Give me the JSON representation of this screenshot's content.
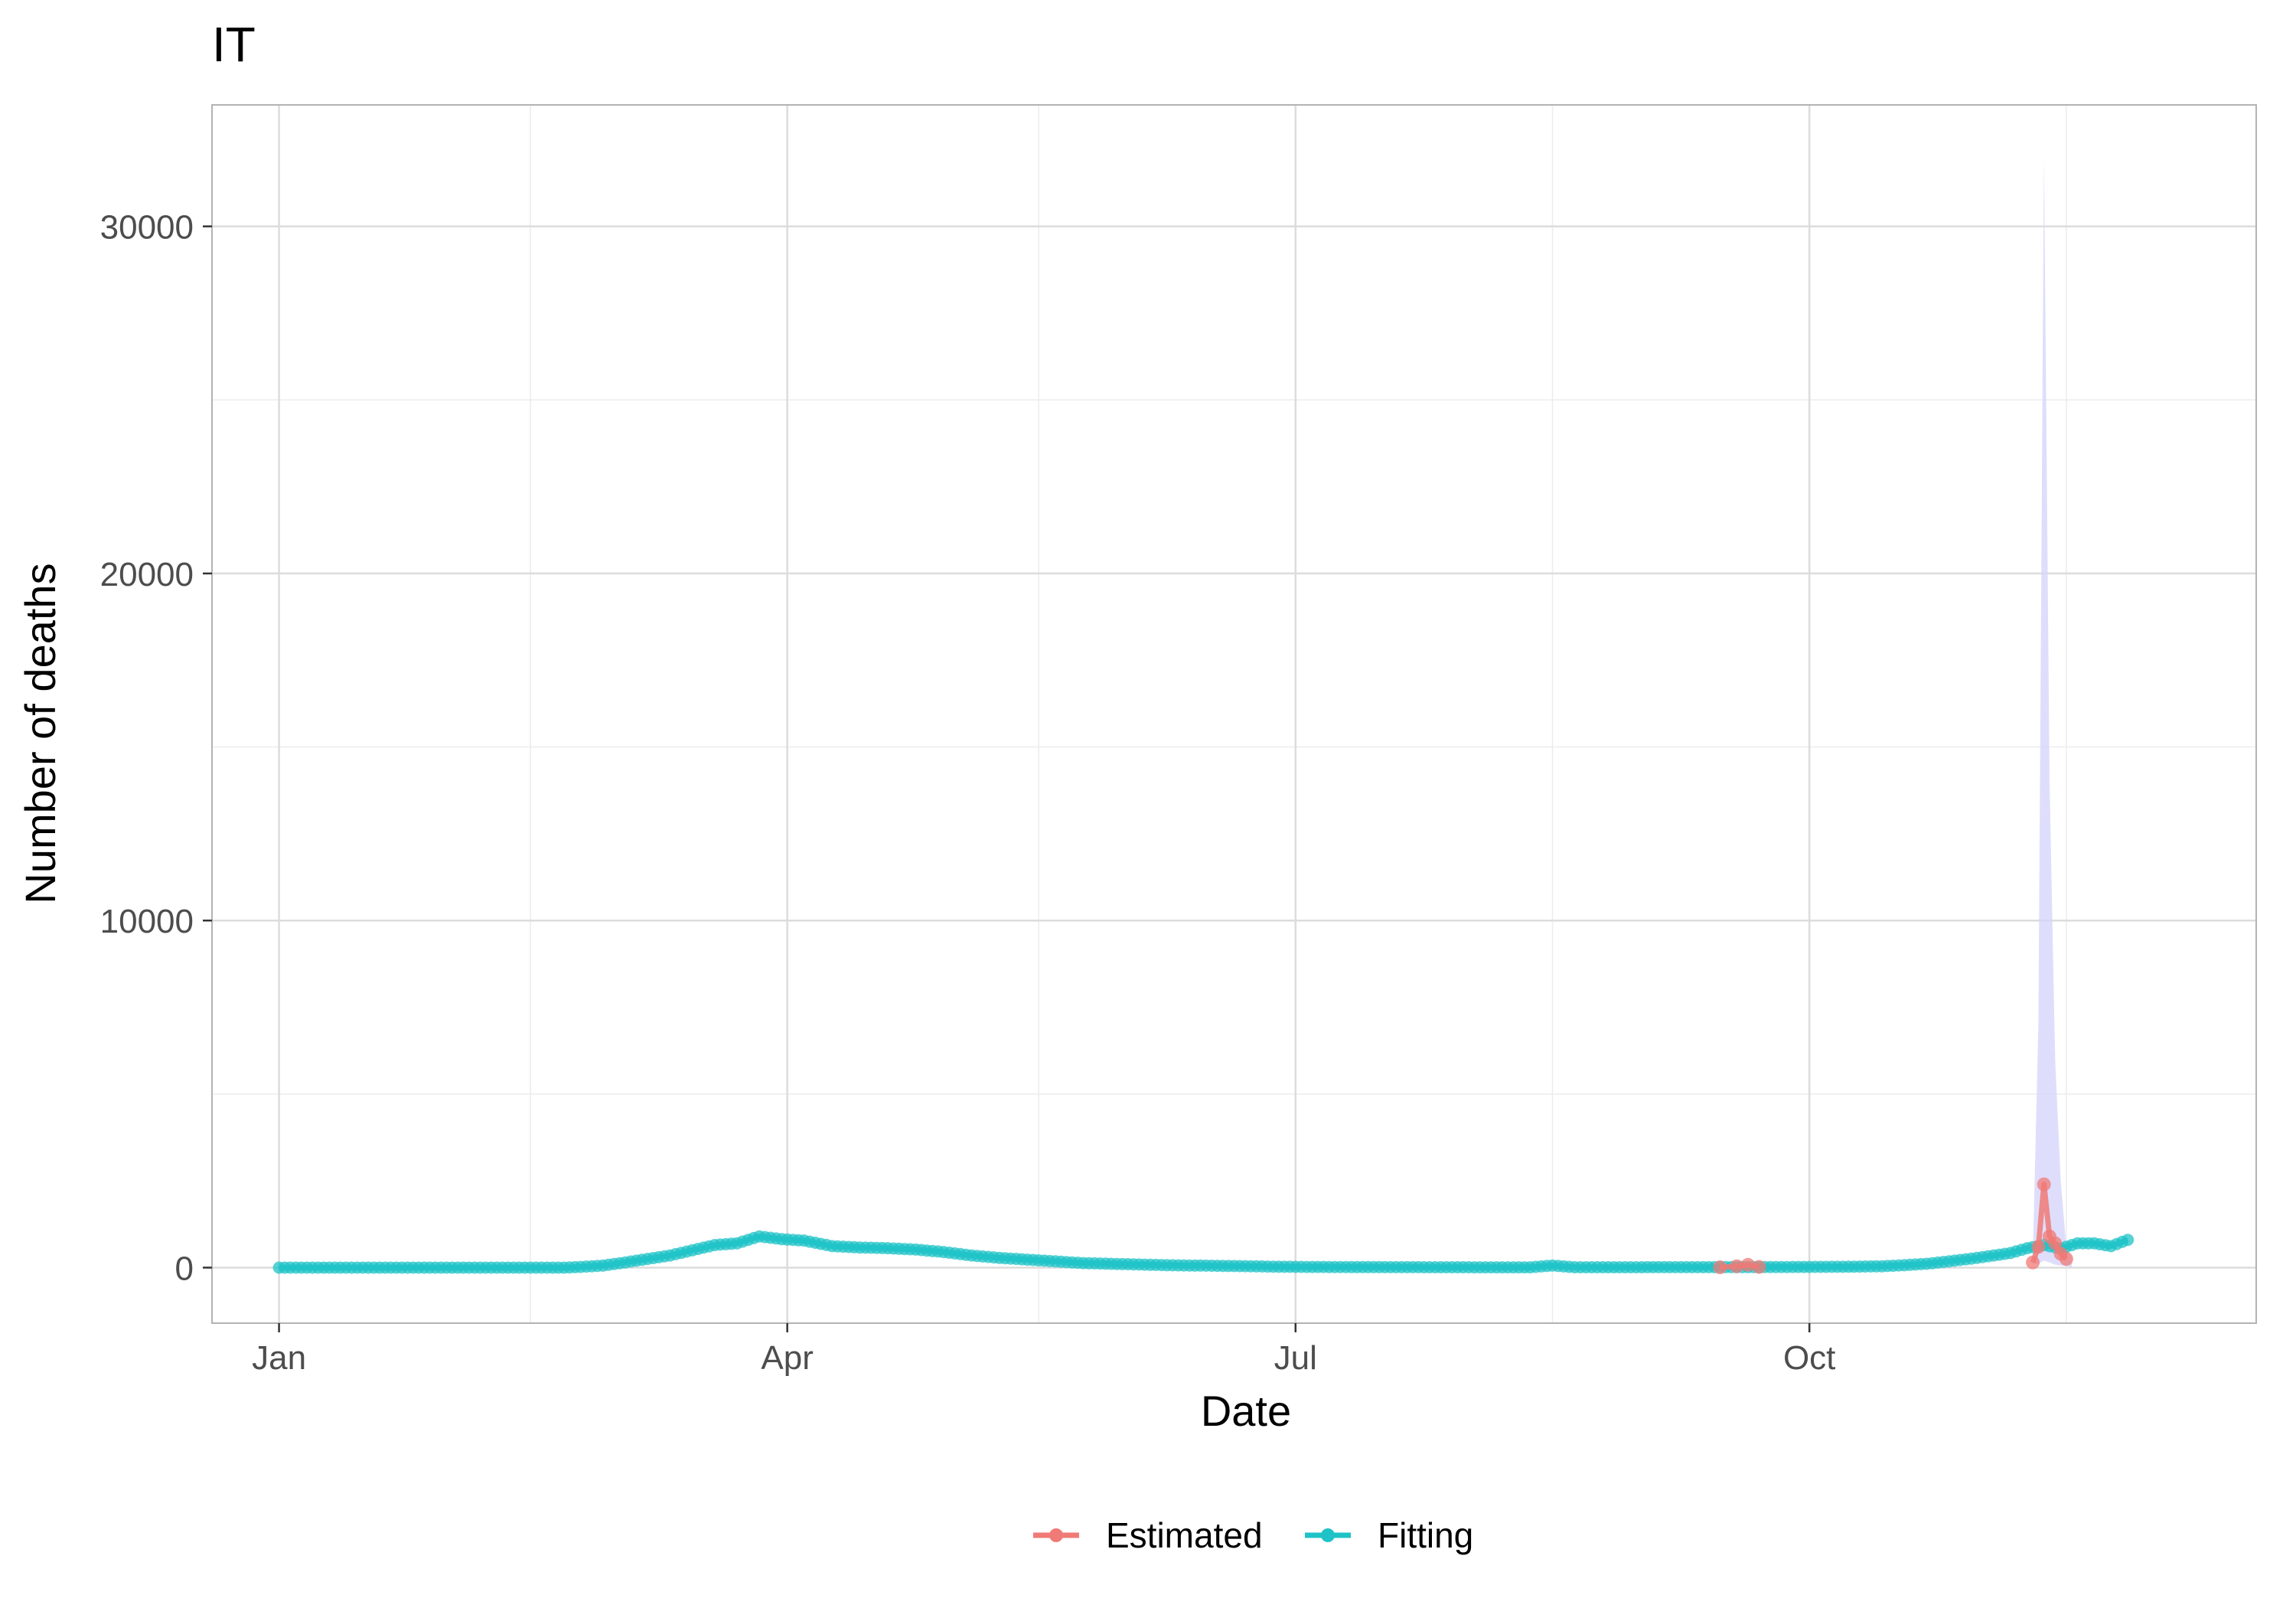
{
  "chart_data": {
    "type": "line",
    "title": "IT",
    "xlabel": "Date",
    "ylabel": "Number of  deaths",
    "x_ticks": [
      {
        "date": "2020-01-01",
        "label": "Jan"
      },
      {
        "date": "2020-04-01",
        "label": "Apr"
      },
      {
        "date": "2020-07-01",
        "label": "Jul"
      },
      {
        "date": "2020-10-01",
        "label": "Oct"
      }
    ],
    "x_minor_ticks": [
      "2020-02-15",
      "2020-05-16",
      "2020-08-16",
      "2020-11-16"
    ],
    "xlim": [
      "2019-12-20",
      "2020-12-20"
    ],
    "y_ticks": [
      0,
      10000,
      20000,
      30000
    ],
    "y_minor_ticks": [
      5000,
      15000,
      25000
    ],
    "ylim": [
      -1600,
      33500
    ],
    "grid": true,
    "legend_position": "bottom",
    "legend": [
      {
        "name": "Estimated",
        "color": "#f07a75"
      },
      {
        "name": "Fitting",
        "color": "#1fc3c7"
      }
    ],
    "band": {
      "color": "#d6d6fb",
      "points": [
        {
          "date": "2020-11-10",
          "lower": 100,
          "upper": 300
        },
        {
          "date": "2020-11-11",
          "lower": 100,
          "upper": 7000
        },
        {
          "date": "2020-11-12",
          "lower": 200,
          "upper": 32000
        },
        {
          "date": "2020-11-13",
          "lower": 150,
          "upper": 14000
        },
        {
          "date": "2020-11-14",
          "lower": 80,
          "upper": 6000
        },
        {
          "date": "2020-11-15",
          "lower": 60,
          "upper": 2500
        },
        {
          "date": "2020-11-16",
          "lower": 40,
          "upper": 600
        },
        {
          "date": "2020-11-17",
          "lower": 20,
          "upper": 300
        }
      ]
    },
    "series": [
      {
        "name": "Fitting",
        "color": "#1fc3c7",
        "points": [
          [
            "2020-01-01",
            0
          ],
          [
            "2020-02-21",
            0
          ],
          [
            "2020-02-24",
            20
          ],
          [
            "2020-02-28",
            60
          ],
          [
            "2020-03-03",
            150
          ],
          [
            "2020-03-07",
            250
          ],
          [
            "2020-03-11",
            350
          ],
          [
            "2020-03-15",
            500
          ],
          [
            "2020-03-19",
            650
          ],
          [
            "2020-03-23",
            700
          ],
          [
            "2020-03-27",
            900
          ],
          [
            "2020-03-31",
            820
          ],
          [
            "2020-04-04",
            780
          ],
          [
            "2020-04-09",
            620
          ],
          [
            "2020-04-14",
            580
          ],
          [
            "2020-04-19",
            560
          ],
          [
            "2020-04-24",
            520
          ],
          [
            "2020-04-29",
            450
          ],
          [
            "2020-05-04",
            350
          ],
          [
            "2020-05-09",
            280
          ],
          [
            "2020-05-14",
            230
          ],
          [
            "2020-05-19",
            180
          ],
          [
            "2020-05-24",
            130
          ],
          [
            "2020-05-29",
            110
          ],
          [
            "2020-06-03",
            90
          ],
          [
            "2020-06-08",
            70
          ],
          [
            "2020-06-13",
            60
          ],
          [
            "2020-06-18",
            50
          ],
          [
            "2020-06-23",
            40
          ],
          [
            "2020-06-28",
            25
          ],
          [
            "2020-07-03",
            20
          ],
          [
            "2020-07-13",
            15
          ],
          [
            "2020-07-28",
            10
          ],
          [
            "2020-08-12",
            8
          ],
          [
            "2020-08-16",
            60
          ],
          [
            "2020-08-20",
            10
          ],
          [
            "2020-09-05",
            12
          ],
          [
            "2020-09-20",
            15
          ],
          [
            "2020-10-01",
            20
          ],
          [
            "2020-10-08",
            25
          ],
          [
            "2020-10-14",
            40
          ],
          [
            "2020-10-18",
            70
          ],
          [
            "2020-10-22",
            110
          ],
          [
            "2020-10-26",
            180
          ],
          [
            "2020-10-30",
            260
          ],
          [
            "2020-11-03",
            350
          ],
          [
            "2020-11-06",
            420
          ],
          [
            "2020-11-09",
            560
          ],
          [
            "2020-11-12",
            650
          ],
          [
            "2020-11-15",
            550
          ],
          [
            "2020-11-18",
            700
          ],
          [
            "2020-11-21",
            700
          ],
          [
            "2020-11-24",
            620
          ],
          [
            "2020-11-27",
            800
          ]
        ]
      },
      {
        "name": "Estimated",
        "color": "#f07a75",
        "points": [
          [
            "2020-09-15",
            10
          ],
          [
            "2020-09-18",
            40
          ],
          [
            "2020-09-20",
            80
          ],
          [
            "2020-09-22",
            20
          ],
          [
            "2020-11-10",
            150
          ],
          [
            "2020-11-11",
            600
          ],
          [
            "2020-11-12",
            2400
          ],
          [
            "2020-11-13",
            900
          ],
          [
            "2020-11-14",
            700
          ],
          [
            "2020-11-15",
            400
          ],
          [
            "2020-11-16",
            250
          ]
        ]
      }
    ]
  }
}
